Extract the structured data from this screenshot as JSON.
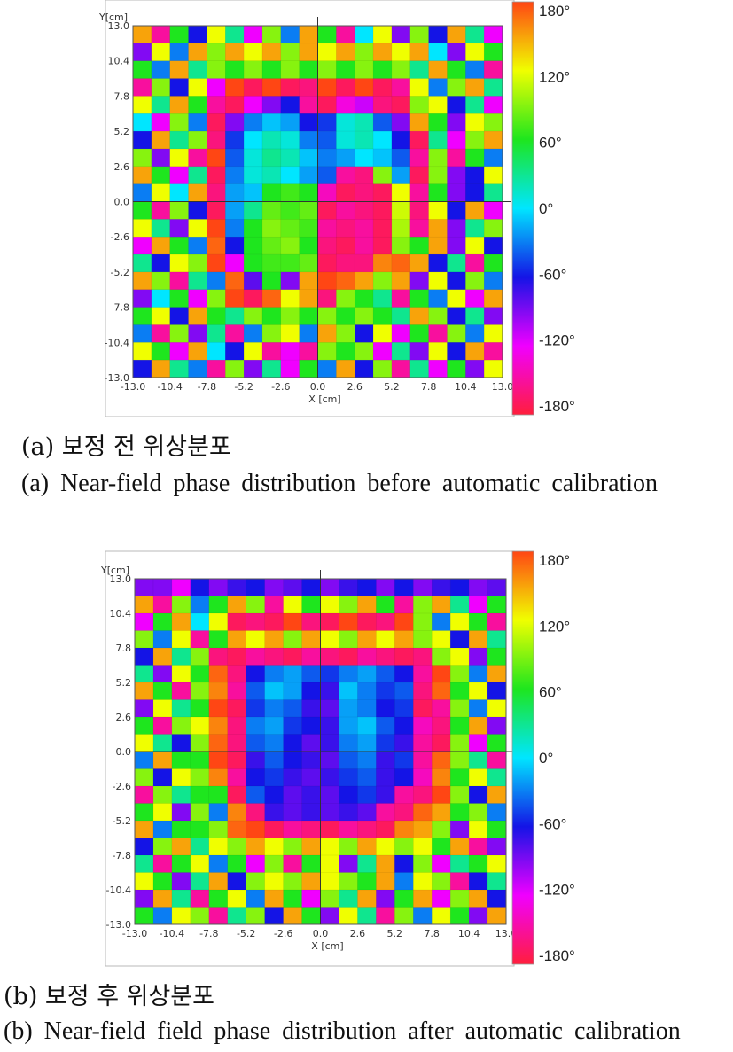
{
  "chart_data": [
    {
      "type": "heatmap",
      "panel": "a",
      "caption_korean": "(a) 보정 전 위상분포",
      "caption_english": "(a) Near-field phase distribution before automatic calibration",
      "xlabel": "X [cm]",
      "ylabel": "Y[cm]",
      "xlim": [
        -13.0,
        13.0
      ],
      "ylim": [
        -13.0,
        13.0
      ],
      "x_ticks": [
        "-13.0",
        "-10.4",
        "-7.8",
        "-5.2",
        "-2.6",
        "0.0",
        "2.6",
        "5.2",
        "7.8",
        "10.4",
        "13.0"
      ],
      "y_ticks": [
        "13.0",
        "10.4",
        "7.8",
        "5.2",
        "2.6",
        "0.0",
        "-2.6",
        "-5.2",
        "-7.8",
        "-10.4",
        "-13.0"
      ],
      "colorbar_range": [
        -180,
        180
      ],
      "colorbar_ticks": [
        "180°",
        "120°",
        "60°",
        "0°",
        "-60°",
        "-120°",
        "-180°"
      ],
      "grid": "20x20",
      "values": [
        [
          150,
          -150,
          60,
          -60,
          120,
          30,
          -120,
          90,
          -30,
          150,
          60,
          -150,
          0,
          120,
          -90,
          90,
          -60,
          150,
          30,
          -120
        ],
        [
          -90,
          120,
          -30,
          150,
          90,
          150,
          120,
          150,
          90,
          150,
          120,
          150,
          90,
          150,
          120,
          150,
          0,
          -90,
          120,
          60
        ],
        [
          60,
          -30,
          150,
          30,
          90,
          60,
          90,
          60,
          90,
          60,
          90,
          60,
          90,
          60,
          90,
          30,
          150,
          60,
          -30,
          -150
        ],
        [
          -150,
          90,
          -60,
          120,
          -120,
          180,
          -170,
          180,
          -170,
          -160,
          180,
          -170,
          180,
          -170,
          -150,
          120,
          -30,
          90,
          150,
          30
        ],
        [
          120,
          30,
          150,
          60,
          -150,
          -170,
          -120,
          -90,
          -60,
          -150,
          -170,
          -130,
          -110,
          -160,
          -170,
          90,
          120,
          -60,
          30,
          -120
        ],
        [
          0,
          -120,
          90,
          -30,
          -170,
          -90,
          -30,
          -10,
          -20,
          -60,
          -50,
          10,
          20,
          -40,
          -90,
          150,
          60,
          -90,
          120,
          90
        ],
        [
          -60,
          150,
          30,
          90,
          -160,
          -50,
          0,
          20,
          10,
          -30,
          -40,
          10,
          20,
          0,
          -60,
          -170,
          30,
          -120,
          90,
          150
        ],
        [
          90,
          -90,
          120,
          -150,
          180,
          -40,
          10,
          30,
          20,
          -10,
          -30,
          -20,
          0,
          -10,
          -40,
          -150,
          90,
          -150,
          60,
          -30
        ],
        [
          150,
          60,
          -120,
          30,
          -170,
          -30,
          10,
          20,
          0,
          -20,
          -40,
          -150,
          -160,
          90,
          -20,
          -170,
          90,
          -90,
          -60,
          120
        ],
        [
          -30,
          120,
          0,
          150,
          -160,
          -20,
          -10,
          60,
          70,
          60,
          -140,
          -170,
          -160,
          -170,
          120,
          -150,
          60,
          -90,
          -60,
          30
        ],
        [
          60,
          -150,
          90,
          -60,
          -170,
          -20,
          30,
          80,
          70,
          80,
          -170,
          -150,
          -160,
          -170,
          110,
          -160,
          120,
          -60,
          150,
          -120
        ],
        [
          120,
          30,
          -90,
          120,
          180,
          -30,
          60,
          90,
          80,
          70,
          -150,
          -160,
          -150,
          -170,
          100,
          -150,
          150,
          -90,
          30,
          90
        ],
        [
          -120,
          150,
          60,
          -30,
          170,
          -60,
          60,
          80,
          90,
          60,
          -160,
          -170,
          -150,
          -170,
          90,
          60,
          150,
          -90,
          120,
          -60
        ],
        [
          30,
          -60,
          120,
          90,
          180,
          -120,
          60,
          70,
          70,
          80,
          -170,
          -160,
          -160,
          160,
          170,
          150,
          -60,
          30,
          -150,
          60
        ],
        [
          150,
          90,
          -150,
          30,
          -30,
          170,
          -80,
          60,
          -90,
          150,
          180,
          170,
          150,
          90,
          150,
          -90,
          120,
          -60,
          90,
          -30
        ],
        [
          -90,
          0,
          60,
          -120,
          90,
          180,
          -170,
          170,
          120,
          150,
          -160,
          90,
          60,
          30,
          -150,
          60,
          -30,
          120,
          -120,
          150
        ],
        [
          60,
          120,
          -60,
          150,
          60,
          30,
          90,
          60,
          90,
          60,
          90,
          60,
          90,
          60,
          30,
          150,
          90,
          -60,
          30,
          -90
        ],
        [
          -30,
          -150,
          90,
          -90,
          30,
          -150,
          -30,
          90,
          120,
          -30,
          150,
          90,
          -60,
          120,
          -120,
          60,
          -150,
          90,
          -30,
          120
        ],
        [
          120,
          60,
          -120,
          150,
          0,
          -60,
          120,
          -150,
          -120,
          -150,
          90,
          60,
          90,
          -120,
          30,
          -90,
          120,
          -60,
          150,
          -150
        ],
        [
          -60,
          150,
          30,
          -30,
          -150,
          90,
          -90,
          30,
          -120,
          60,
          -30,
          150,
          -60,
          90,
          -150,
          30,
          -120,
          60,
          -90,
          120
        ]
      ]
    },
    {
      "type": "heatmap",
      "panel": "b",
      "caption_korean": "(b) 보정 후 위상분포",
      "caption_english": "(b) Near-field field phase distribution after automatic calibration",
      "xlabel": "X [cm]",
      "ylabel": "Y[cm]",
      "xlim": [
        -13.0,
        13.0
      ],
      "ylim": [
        -13.0,
        13.0
      ],
      "x_ticks": [
        "-13.0",
        "-10.4",
        "-7.8",
        "-5.2",
        "-2.6",
        "0.0",
        "2.6",
        "5.2",
        "7.8",
        "10.4",
        "13.0"
      ],
      "y_ticks": [
        "13.0",
        "10.4",
        "7.8",
        "5.2",
        "2.6",
        "0.0",
        "-2.6",
        "-5.2",
        "-7.8",
        "-10.4",
        "-13.0"
      ],
      "colorbar_range": [
        -180,
        180
      ],
      "colorbar_ticks": [
        "180°",
        "120°",
        "60°",
        "0°",
        "-60°",
        "-120°",
        "-180°"
      ],
      "grid": "20x20",
      "values": [
        [
          -90,
          -90,
          -120,
          -60,
          -90,
          -70,
          -60,
          -90,
          -80,
          -60,
          -90,
          -70,
          -60,
          -90,
          -60,
          -90,
          -70,
          -60,
          -90,
          -80
        ],
        [
          150,
          -150,
          90,
          -30,
          60,
          150,
          90,
          -150,
          120,
          60,
          120,
          90,
          150,
          60,
          -150,
          90,
          150,
          30,
          -120,
          60
        ],
        [
          -120,
          60,
          150,
          0,
          120,
          -170,
          -160,
          -170,
          180,
          -160,
          -170,
          180,
          -170,
          -160,
          180,
          90,
          -30,
          120,
          60,
          -150
        ],
        [
          90,
          -30,
          120,
          -150,
          60,
          150,
          120,
          150,
          90,
          150,
          120,
          90,
          150,
          120,
          150,
          90,
          120,
          -60,
          150,
          30
        ],
        [
          -60,
          150,
          30,
          90,
          -160,
          -170,
          -150,
          -160,
          -170,
          -150,
          -160,
          -170,
          -150,
          -160,
          -170,
          -160,
          90,
          120,
          -90,
          60
        ],
        [
          30,
          -90,
          120,
          60,
          170,
          -160,
          -60,
          -30,
          -20,
          -40,
          -50,
          -30,
          -20,
          -40,
          -60,
          -150,
          180,
          90,
          -30,
          150
        ],
        [
          150,
          60,
          -150,
          90,
          160,
          -150,
          -40,
          -10,
          -20,
          -60,
          -70,
          -10,
          -30,
          -50,
          -40,
          -160,
          170,
          60,
          120,
          -60
        ],
        [
          -90,
          120,
          30,
          60,
          180,
          -170,
          -50,
          -30,
          -40,
          -70,
          -80,
          -20,
          -30,
          -60,
          -50,
          -170,
          -150,
          90,
          -30,
          120
        ],
        [
          60,
          -150,
          90,
          120,
          160,
          -160,
          -30,
          -20,
          -50,
          -60,
          -70,
          -20,
          -10,
          -40,
          -60,
          -140,
          -160,
          60,
          150,
          -90
        ],
        [
          120,
          30,
          -60,
          90,
          170,
          -160,
          -40,
          -30,
          -60,
          -80,
          -70,
          -30,
          -20,
          -50,
          -70,
          -150,
          -170,
          90,
          -120,
          60
        ],
        [
          -30,
          150,
          60,
          60,
          180,
          -170,
          -70,
          -40,
          -60,
          -70,
          -80,
          -40,
          -30,
          -70,
          -50,
          -150,
          170,
          90,
          30,
          -150
        ],
        [
          90,
          -60,
          120,
          90,
          160,
          -150,
          -60,
          -50,
          -70,
          -80,
          -70,
          -50,
          -40,
          -70,
          -60,
          -140,
          160,
          60,
          120,
          30
        ],
        [
          -150,
          90,
          30,
          60,
          60,
          -170,
          -40,
          -60,
          -80,
          -70,
          -80,
          -60,
          -50,
          -70,
          -150,
          -160,
          180,
          90,
          -60,
          150
        ],
        [
          60,
          120,
          -90,
          90,
          -30,
          160,
          -160,
          -70,
          -80,
          -70,
          -80,
          -70,
          -80,
          -150,
          -160,
          170,
          150,
          60,
          90,
          -30
        ],
        [
          150,
          -30,
          60,
          60,
          90,
          170,
          180,
          -170,
          -150,
          -160,
          -170,
          -150,
          -160,
          -170,
          160,
          150,
          90,
          -90,
          120,
          60
        ],
        [
          -60,
          90,
          150,
          30,
          120,
          90,
          150,
          120,
          90,
          150,
          120,
          90,
          150,
          120,
          90,
          120,
          60,
          150,
          -150,
          -90
        ],
        [
          30,
          -150,
          60,
          120,
          -30,
          60,
          -120,
          90,
          -150,
          60,
          120,
          -90,
          30,
          150,
          -60,
          90,
          -120,
          30,
          60,
          120
        ],
        [
          120,
          60,
          -90,
          30,
          150,
          -60,
          90,
          120,
          90,
          150,
          120,
          90,
          60,
          150,
          -30,
          120,
          90,
          -150,
          -60,
          30
        ],
        [
          -90,
          150,
          30,
          -150,
          60,
          120,
          -30,
          150,
          60,
          -120,
          90,
          30,
          150,
          -90,
          60,
          150,
          -120,
          90,
          150,
          -60
        ],
        [
          60,
          -30,
          120,
          90,
          -150,
          30,
          90,
          -60,
          150,
          60,
          -90,
          120,
          30,
          -150,
          90,
          -30,
          120,
          60,
          -90,
          150
        ]
      ]
    }
  ]
}
